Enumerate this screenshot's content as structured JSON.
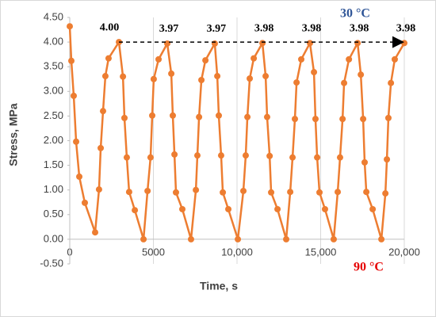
{
  "chart_data": {
    "type": "line",
    "x_label": "Time, s",
    "y_label": "Stress, MPa",
    "annotations": [
      {
        "text": "30 °C",
        "color": "#2f5597"
      },
      {
        "text": "90 °C",
        "color": "#e60000"
      }
    ],
    "xlim": [
      0,
      20000
    ],
    "xticks": [
      0,
      5000,
      {
        "value": 10000,
        "label": "10,000"
      },
      {
        "value": 15000,
        "label": "15,000"
      },
      {
        "value": 20000,
        "label": "20,000"
      }
    ],
    "ylim": [
      -0.5,
      4.5
    ],
    "yticks": [
      {
        "value": -0.5,
        "label": "-0.50"
      },
      {
        "value": 0,
        "label": "0.00"
      },
      {
        "value": 0.5,
        "label": "0.50"
      },
      {
        "value": 1,
        "label": "1.00"
      },
      {
        "value": 1.5,
        "label": "1.50"
      },
      {
        "value": 2,
        "label": "2.00"
      },
      {
        "value": 2.5,
        "label": "2.50"
      },
      {
        "value": 3,
        "label": "3.00"
      },
      {
        "value": 3.5,
        "label": "3.50"
      },
      {
        "value": 4,
        "label": "4.00"
      },
      {
        "value": 4.5,
        "label": "4.50"
      }
    ],
    "grid": "x",
    "series": [
      {
        "name": "Stress",
        "color": "#ed7d31",
        "x": [
          0,
          95,
          237,
          380,
          570,
          900,
          1517,
          1750,
          1850,
          1990,
          2130,
          2320,
          2940,
          3180,
          3270,
          3410,
          3550,
          3890,
          4410,
          4650,
          4830,
          4930,
          5020,
          5310,
          5830,
          6070,
          6160,
          6260,
          6350,
          6730,
          7250,
          7540,
          7630,
          7730,
          7870,
          8110,
          8670,
          8820,
          8910,
          9050,
          9150,
          9480,
          10050,
          10380,
          10520,
          10620,
          10760,
          11000,
          11520,
          11710,
          11800,
          11950,
          12040,
          12420,
          12940,
          13180,
          13320,
          13460,
          13560,
          13840,
          14360,
          14600,
          14690,
          14790,
          14930,
          15260,
          15780,
          16020,
          16160,
          16310,
          16400,
          16690,
          17210,
          17400,
          17540,
          17630,
          17730,
          18110,
          18630,
          18870,
          18960,
          19050,
          19200,
          19430,
          20000
        ],
        "values": [
          4.32,
          3.62,
          2.91,
          1.98,
          1.27,
          0.74,
          0.14,
          1.01,
          1.85,
          2.6,
          3.31,
          3.67,
          4.0,
          3.3,
          2.46,
          1.66,
          0.96,
          0.59,
          0.0,
          0.98,
          1.66,
          2.51,
          3.25,
          3.65,
          3.97,
          3.36,
          2.51,
          1.72,
          0.95,
          0.61,
          0.0,
          1.0,
          1.7,
          2.48,
          3.23,
          3.63,
          3.97,
          3.31,
          2.51,
          1.7,
          0.95,
          0.61,
          0.0,
          0.98,
          1.7,
          2.48,
          3.26,
          3.67,
          3.98,
          3.31,
          2.48,
          1.69,
          0.95,
          0.61,
          0.0,
          0.96,
          1.66,
          2.44,
          3.18,
          3.65,
          3.98,
          3.39,
          2.44,
          1.66,
          0.95,
          0.61,
          0.0,
          0.96,
          1.66,
          2.44,
          3.17,
          3.65,
          3.98,
          3.34,
          2.44,
          1.56,
          0.96,
          0.61,
          0.0,
          0.93,
          1.62,
          2.46,
          3.17,
          3.65,
          3.98
        ],
        "value_labels": [
          null,
          null,
          null,
          null,
          null,
          null,
          null,
          null,
          null,
          null,
          null,
          null,
          "4.00",
          null,
          null,
          null,
          null,
          null,
          null,
          null,
          null,
          null,
          null,
          null,
          "3.97",
          null,
          null,
          null,
          null,
          null,
          null,
          null,
          null,
          null,
          null,
          null,
          "3.97",
          null,
          null,
          null,
          null,
          null,
          null,
          null,
          null,
          null,
          null,
          null,
          "3.98",
          null,
          null,
          null,
          null,
          null,
          null,
          null,
          null,
          null,
          null,
          null,
          "3.98",
          null,
          null,
          null,
          null,
          null,
          null,
          null,
          null,
          null,
          null,
          null,
          "3.98",
          null,
          null,
          null,
          null,
          null,
          null,
          null,
          null,
          null,
          null,
          null,
          "3.98"
        ]
      }
    ]
  }
}
